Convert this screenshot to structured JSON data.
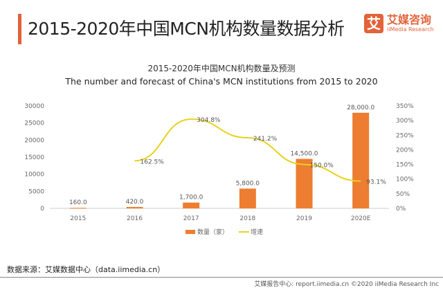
{
  "header": {
    "title": "2015-2020年中国MCN机构数量数据分析",
    "logo_mark": "艾",
    "logo_cn": "艾媒咨询",
    "logo_en": "iiMedia Research"
  },
  "chart_data": {
    "type": "bar+line",
    "title": "2015-2020年中国MCN机构数量及预测",
    "subtitle": "The number and forecast of China's MCN institutions from 2015 to 2020",
    "categories": [
      "2015",
      "2016",
      "2017",
      "2018",
      "2019",
      "2020E"
    ],
    "series": [
      {
        "name": "数量（家）",
        "type": "bar",
        "axis": "left",
        "color": "#ED7D31",
        "values": [
          160,
          420,
          1700,
          5800,
          14500,
          28000
        ],
        "labels": [
          "160.0",
          "420.0",
          "1,700.0",
          "5,800.0",
          "14,500.0",
          "28,000.0"
        ]
      },
      {
        "name": "增速",
        "type": "line",
        "axis": "right",
        "color": "#E8D21C",
        "values": [
          null,
          162.5,
          304.8,
          241.2,
          150.0,
          93.1
        ],
        "labels": [
          "",
          "162.5%",
          "304.8%",
          "241.2%",
          "150.0%",
          "93.1%"
        ]
      }
    ],
    "y_left": {
      "range": [
        0,
        30000
      ],
      "ticks": [
        "0",
        "5000",
        "10000",
        "15000",
        "20000",
        "25000",
        "30000"
      ]
    },
    "y_right": {
      "range": [
        0,
        350
      ],
      "ticks": [
        "0%",
        "50%",
        "100%",
        "150%",
        "200%",
        "250%",
        "300%",
        "350%"
      ]
    },
    "grid": false,
    "legend": "bottom"
  },
  "source": "数据来源：艾媒数据中心（data.iimedia.cn）",
  "footer": "艾媒报告中心: report.iimedia.cn  ©2020  iiMedia Research Inc"
}
